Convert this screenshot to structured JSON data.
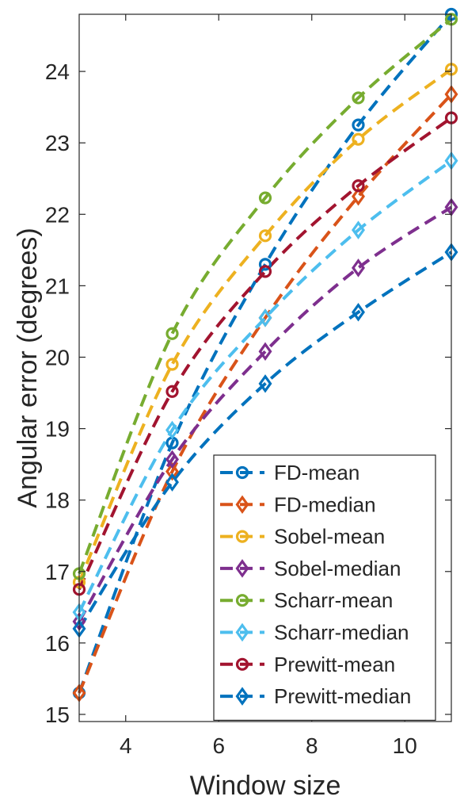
{
  "chart_data": {
    "type": "line",
    "title": "",
    "xlabel": "Window size",
    "ylabel": "Angular error (degrees)",
    "xlim": [
      3,
      11
    ],
    "ylim": [
      14.9,
      24.8
    ],
    "xticks": [
      4,
      6,
      8,
      10
    ],
    "yticks": [
      15,
      16,
      17,
      18,
      19,
      20,
      21,
      22,
      23,
      24
    ],
    "xtick_labels": [
      "4",
      "6",
      "8",
      "10"
    ],
    "ytick_labels": [
      "15",
      "16",
      "17",
      "18",
      "19",
      "20",
      "21",
      "22",
      "23",
      "24"
    ],
    "x": [
      3,
      5,
      7,
      9,
      11
    ],
    "grid": false,
    "legend_position": "bottom-right",
    "series": [
      {
        "name": "FD-mean",
        "values": [
          15.3,
          18.8,
          21.3,
          23.25,
          24.8
        ],
        "color": "#0072BD",
        "marker": "circle"
      },
      {
        "name": "FD-median",
        "values": [
          15.3,
          18.4,
          20.55,
          22.25,
          23.68
        ],
        "color": "#D95319",
        "marker": "diamond"
      },
      {
        "name": "Sobel-mean",
        "values": [
          16.85,
          19.9,
          21.7,
          23.05,
          24.03
        ],
        "color": "#EDB120",
        "marker": "circle"
      },
      {
        "name": "Sobel-median",
        "values": [
          16.3,
          18.57,
          20.08,
          21.25,
          22.1
        ],
        "color": "#7E2F8E",
        "marker": "diamond"
      },
      {
        "name": "Scharr-mean",
        "values": [
          16.97,
          20.33,
          22.23,
          23.63,
          24.73
        ],
        "color": "#77AC30",
        "marker": "circle"
      },
      {
        "name": "Scharr-median",
        "values": [
          16.43,
          18.98,
          20.55,
          21.78,
          22.75
        ],
        "color": "#4DBEEE",
        "marker": "diamond"
      },
      {
        "name": "Prewitt-mean",
        "values": [
          16.75,
          19.52,
          21.2,
          22.4,
          23.35
        ],
        "color": "#A2142F",
        "marker": "circle"
      },
      {
        "name": "Prewitt-median",
        "values": [
          16.2,
          18.25,
          19.63,
          20.63,
          21.47
        ],
        "color": "#0072BD",
        "marker": "diamond"
      }
    ]
  }
}
